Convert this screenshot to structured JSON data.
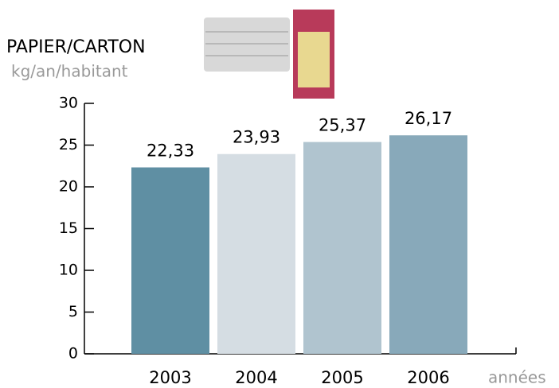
{
  "chart_data": {
    "type": "bar",
    "title": "PAPIER/CARTON",
    "ylabel": "kg/an/habitant",
    "xlabel": "années",
    "categories": [
      "2003",
      "2004",
      "2005",
      "2006"
    ],
    "values": [
      22.33,
      23.93,
      25.37,
      26.17
    ],
    "value_labels": [
      "22,33",
      "23,93",
      "25,37",
      "26,17"
    ],
    "colors": [
      "#5f8fa3",
      "#d5dde3",
      "#b0c4cf",
      "#88a9ba"
    ],
    "ylim": [
      0,
      30
    ],
    "yticks": [
      0,
      5,
      10,
      15,
      20,
      25,
      30
    ],
    "grid": false
  }
}
